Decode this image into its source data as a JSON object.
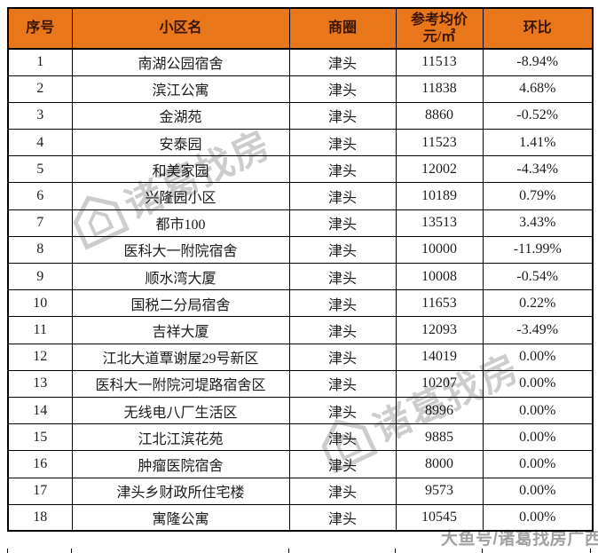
{
  "table": {
    "columns": [
      {
        "id": "index",
        "label": "序号"
      },
      {
        "id": "community",
        "label": "小区名"
      },
      {
        "id": "district",
        "label": "商圈"
      },
      {
        "id": "price",
        "label": "参考均价\n元/㎡"
      },
      {
        "id": "mom",
        "label": "环比"
      }
    ],
    "rows": [
      [
        "1",
        "南湖公园宿舍",
        "津头",
        "11513",
        "-8.94%"
      ],
      [
        "2",
        "滨江公寓",
        "津头",
        "11838",
        "4.68%"
      ],
      [
        "3",
        "金湖苑",
        "津头",
        "8860",
        "-0.52%"
      ],
      [
        "4",
        "安泰园",
        "津头",
        "11523",
        "1.41%"
      ],
      [
        "5",
        "和美家园",
        "津头",
        "12002",
        "-4.34%"
      ],
      [
        "6",
        "兴隆园小区",
        "津头",
        "10189",
        "0.79%"
      ],
      [
        "7",
        "都市100",
        "津头",
        "13513",
        "3.43%"
      ],
      [
        "8",
        "医科大一附院宿舍",
        "津头",
        "10000",
        "-11.99%"
      ],
      [
        "9",
        "顺水湾大厦",
        "津头",
        "10008",
        "-0.54%"
      ],
      [
        "10",
        "国税二分局宿舍",
        "津头",
        "11653",
        "0.22%"
      ],
      [
        "11",
        "吉祥大厦",
        "津头",
        "12093",
        "-3.49%"
      ],
      [
        "12",
        "江北大道覃谢屋29号新区",
        "津头",
        "14019",
        "0.00%"
      ],
      [
        "13",
        "医科大一附院河堤路宿舍区",
        "津头",
        "10207",
        "0.00%"
      ],
      [
        "14",
        "无线电八厂生活区",
        "津头",
        "8996",
        "0.00%"
      ],
      [
        "15",
        "江北江滨花苑",
        "津头",
        "9885",
        "0.00%"
      ],
      [
        "16",
        "肿瘤医院宿舍",
        "津头",
        "8000",
        "0.00%"
      ],
      [
        "17",
        "津头乡财政所住宅楼",
        "津头",
        "9573",
        "0.00%"
      ],
      [
        "18",
        "寓隆公寓",
        "津头",
        "10545",
        "0.00%"
      ]
    ]
  },
  "watermarks": {
    "diagonal_text": "诸葛找房",
    "diagonal_logo": "house-icon",
    "corner_text": "大鱼号/诸葛找房广西"
  },
  "colors": {
    "header_bg": "#e8771c",
    "header_text": "#3a1505",
    "border": "#000000",
    "cell_text": "#1c1c1c",
    "watermark_gray": "#afafaf"
  }
}
